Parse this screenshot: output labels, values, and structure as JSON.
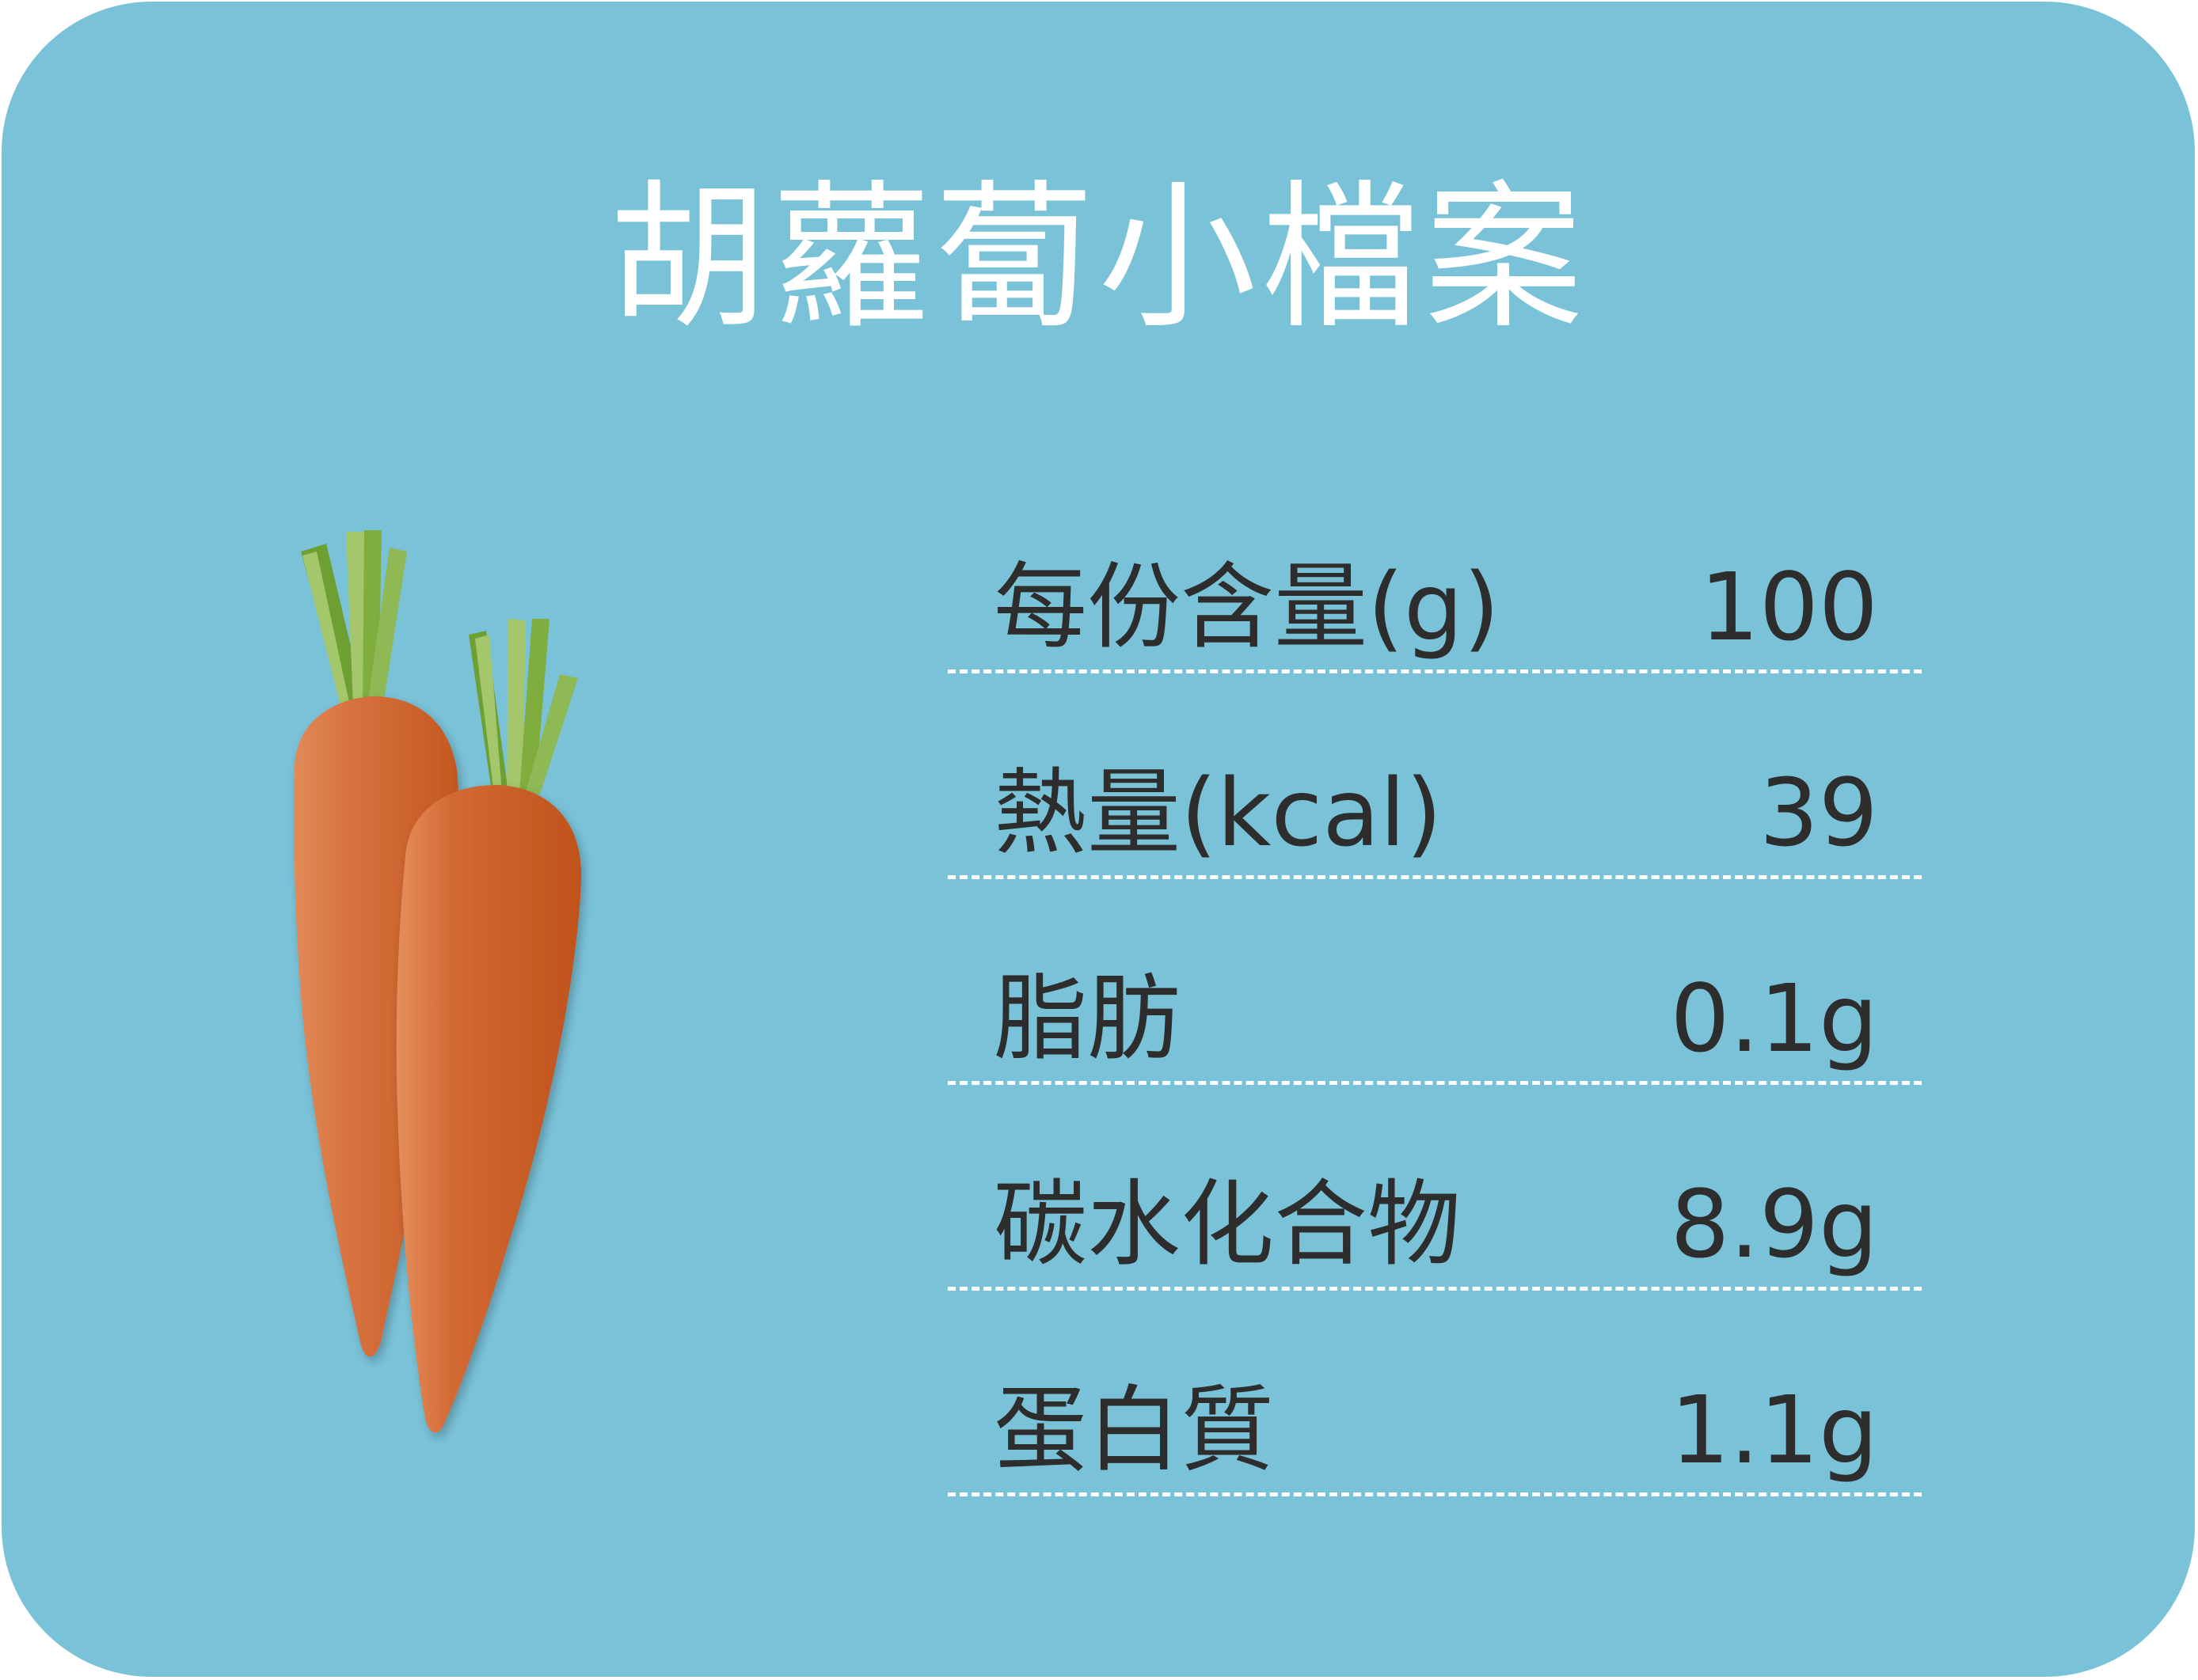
{
  "card": {
    "background_color": "#7ac2d8",
    "title": "胡蘿蔔小檔案"
  },
  "illustration": {
    "name": "carrot-illustration",
    "colors": {
      "carrot_orange": "#c4581f",
      "carrot_highlight": "#e08a57",
      "leaf_green": "#6e9f33",
      "leaf_light": "#a3c76a"
    }
  },
  "nutrition": {
    "rows": [
      {
        "label": "每份含量(g)",
        "value": "100"
      },
      {
        "label": "熱量(kcal)",
        "value": "39"
      },
      {
        "label": "脂肪",
        "value": "0.1g"
      },
      {
        "label": "碳水化合物",
        "value": "8.9g"
      },
      {
        "label": "蛋白質",
        "value": "1.1g"
      }
    ]
  }
}
